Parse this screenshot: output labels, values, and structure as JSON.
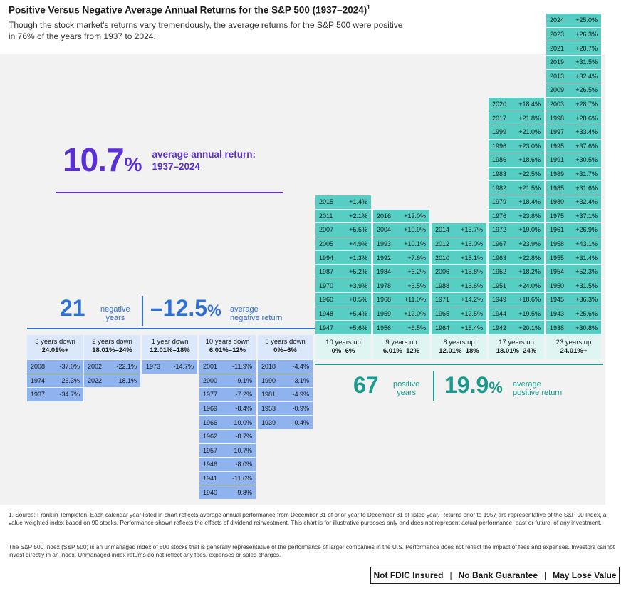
{
  "title": "Positive Versus Negative Average Annual Returns for the S&P 500 (1937–2024)",
  "title_footnote_mark": "1",
  "subtitle": "Though the stock market's returns vary tremendously, the average returns for the S&P 500 were positive in 76% of the years from 1937 to 2024.",
  "hero": {
    "value": "10.7",
    "unit": "%",
    "label_line1": "average annual return:",
    "label_line2": "1937–2024"
  },
  "negative_summary": {
    "count": "21",
    "count_label": [
      "negative",
      "years"
    ],
    "avg": "–12.5",
    "unit": "%",
    "avg_label": [
      "average",
      "negative return"
    ]
  },
  "positive_summary": {
    "count": "67",
    "count_label": [
      "positive",
      "years"
    ],
    "avg": "19.9",
    "unit": "%",
    "avg_label": [
      "average",
      "positive return"
    ]
  },
  "colors": {
    "negative": "#8eb3ee",
    "positive": "#57cec3",
    "accent": "#5b2fd6",
    "pos_text": "#1a9a8d",
    "neg_text": "#2f6fd6"
  },
  "chart_data": {
    "type": "table",
    "columns": [
      {
        "side": "negative",
        "header": "3 years down",
        "range": "24.01%+",
        "years": [
          {
            "year": "2008",
            "value": "-37.0%"
          },
          {
            "year": "1974",
            "value": "-26.3%"
          },
          {
            "year": "1937",
            "value": "-34.7%"
          }
        ]
      },
      {
        "side": "negative",
        "header": "2 years down",
        "range": "18.01%–24%",
        "years": [
          {
            "year": "2002",
            "value": "-22.1%"
          },
          {
            "year": "2022",
            "value": "-18.1%"
          }
        ]
      },
      {
        "side": "negative",
        "header": "1 year down",
        "range": "12.01%–18%",
        "years": [
          {
            "year": "1973",
            "value": "-14.7%"
          }
        ]
      },
      {
        "side": "negative",
        "header": "10 years down",
        "range": "6.01%–12%",
        "years": [
          {
            "year": "2001",
            "value": "-11.9%"
          },
          {
            "year": "2000",
            "value": "-9.1%"
          },
          {
            "year": "1977",
            "value": "-7.2%"
          },
          {
            "year": "1969",
            "value": "-8.4%"
          },
          {
            "year": "1966",
            "value": "-10.0%"
          },
          {
            "year": "1962",
            "value": "-8.7%"
          },
          {
            "year": "1957",
            "value": "-10.7%"
          },
          {
            "year": "1946",
            "value": "-8.0%"
          },
          {
            "year": "1941",
            "value": "-11.6%"
          },
          {
            "year": "1940",
            "value": "-9.8%"
          }
        ]
      },
      {
        "side": "negative",
        "header": "5 years down",
        "range": "0%–6%",
        "years": [
          {
            "year": "2018",
            "value": "-4.4%"
          },
          {
            "year": "1990",
            "value": "-3.1%"
          },
          {
            "year": "1981",
            "value": "-4.9%"
          },
          {
            "year": "1953",
            "value": "-0.9%"
          },
          {
            "year": "1939",
            "value": "-0.4%"
          }
        ]
      },
      {
        "side": "positive",
        "header": "10 years up",
        "range": "0%–6%",
        "years": [
          {
            "year": "2015",
            "value": "+1.4%"
          },
          {
            "year": "2011",
            "value": "+2.1%"
          },
          {
            "year": "2007",
            "value": "+5.5%"
          },
          {
            "year": "2005",
            "value": "+4.9%"
          },
          {
            "year": "1994",
            "value": "+1.3%"
          },
          {
            "year": "1987",
            "value": "+5.2%"
          },
          {
            "year": "1970",
            "value": "+3.9%"
          },
          {
            "year": "1960",
            "value": "+0.5%"
          },
          {
            "year": "1948",
            "value": "+5.4%"
          },
          {
            "year": "1947",
            "value": "+5.6%"
          }
        ]
      },
      {
        "side": "positive",
        "header": "9 years up",
        "range": "6.01%–12%",
        "years": [
          {
            "year": "2016",
            "value": "+12.0%"
          },
          {
            "year": "2004",
            "value": "+10.9%"
          },
          {
            "year": "1993",
            "value": "+10.1%"
          },
          {
            "year": "1992",
            "value": "+7.6%"
          },
          {
            "year": "1984",
            "value": "+6.2%"
          },
          {
            "year": "1978",
            "value": "+6.5%"
          },
          {
            "year": "1968",
            "value": "+11.0%"
          },
          {
            "year": "1959",
            "value": "+12.0%"
          },
          {
            "year": "1956",
            "value": "+6.5%"
          }
        ]
      },
      {
        "side": "positive",
        "header": "8 years up",
        "range": "12.01%–18%",
        "years": [
          {
            "year": "2014",
            "value": "+13.7%"
          },
          {
            "year": "2012",
            "value": "+16.0%"
          },
          {
            "year": "2010",
            "value": "+15.1%"
          },
          {
            "year": "2006",
            "value": "+15.8%"
          },
          {
            "year": "1988",
            "value": "+16.6%"
          },
          {
            "year": "1971",
            "value": "+14.2%"
          },
          {
            "year": "1965",
            "value": "+12.5%"
          },
          {
            "year": "1964",
            "value": "+16.4%"
          }
        ]
      },
      {
        "side": "positive",
        "header": "17 years up",
        "range": "18.01%–24%",
        "years": [
          {
            "year": "2020",
            "value": "+18.4%"
          },
          {
            "year": "2017",
            "value": "+21.8%"
          },
          {
            "year": "1999",
            "value": "+21.0%"
          },
          {
            "year": "1996",
            "value": "+23.0%"
          },
          {
            "year": "1986",
            "value": "+18.6%"
          },
          {
            "year": "1983",
            "value": "+22.5%"
          },
          {
            "year": "1982",
            "value": "+21.5%"
          },
          {
            "year": "1979",
            "value": "+18.4%"
          },
          {
            "year": "1976",
            "value": "+23.8%"
          },
          {
            "year": "1972",
            "value": "+19.0%"
          },
          {
            "year": "1967",
            "value": "+23.9%"
          },
          {
            "year": "1963",
            "value": "+22.8%"
          },
          {
            "year": "1952",
            "value": "+18.2%"
          },
          {
            "year": "1951",
            "value": "+24.0%"
          },
          {
            "year": "1949",
            "value": "+18.6%"
          },
          {
            "year": "1944",
            "value": "+19.5%"
          },
          {
            "year": "1942",
            "value": "+20.1%"
          }
        ]
      },
      {
        "side": "positive",
        "header": "23 years up",
        "range": "24.01%+",
        "years": [
          {
            "year": "2024",
            "value": "+25.0%"
          },
          {
            "year": "2023",
            "value": "+26.3%"
          },
          {
            "year": "2021",
            "value": "+28.7%"
          },
          {
            "year": "2019",
            "value": "+31.5%"
          },
          {
            "year": "2013",
            "value": "+32.4%"
          },
          {
            "year": "2009",
            "value": "+26.5%"
          },
          {
            "year": "2003",
            "value": "+28.7%"
          },
          {
            "year": "1998",
            "value": "+28.6%"
          },
          {
            "year": "1997",
            "value": "+33.4%"
          },
          {
            "year": "1995",
            "value": "+37.6%"
          },
          {
            "year": "1991",
            "value": "+30.5%"
          },
          {
            "year": "1989",
            "value": "+31.7%"
          },
          {
            "year": "1985",
            "value": "+31.6%"
          },
          {
            "year": "1980",
            "value": "+32.4%"
          },
          {
            "year": "1975",
            "value": "+37.1%"
          },
          {
            "year": "1961",
            "value": "+26.9%"
          },
          {
            "year": "1958",
            "value": "+43.1%"
          },
          {
            "year": "1955",
            "value": "+31.4%"
          },
          {
            "year": "1954",
            "value": "+52.3%"
          },
          {
            "year": "1950",
            "value": "+31.5%"
          },
          {
            "year": "1945",
            "value": "+36.3%"
          },
          {
            "year": "1943",
            "value": "+25.6%"
          },
          {
            "year": "1938",
            "value": "+30.8%"
          }
        ]
      }
    ]
  },
  "footnotes": {
    "note1": "1. Source: Franklin Templeton. Each calendar year listed in chart reflects average annual performance from December 31 of prior year to December 31 of listed year. Returns prior to 1957 are representative of the S&P 90 Index, a value-weighted index based on 90 stocks. Performance shown reflects the effects of dividend reinvestment. This chart is for illustrative purposes only and does not represent actual performance, past or future, of any investment.",
    "note2": "The S&P 500 Index (S&P 500) is an unmanaged index of 500 stocks that is generally representative of the performance of larger companies in the U.S. Performance does not reflect the impact of fees and expenses. Investors cannot invest directly in an index. Unmanaged index returns do not reflect any fees, expenses or sales charges."
  },
  "disclaimer": [
    "Not FDIC Insured",
    "No Bank Guarantee",
    "May Lose Value"
  ]
}
